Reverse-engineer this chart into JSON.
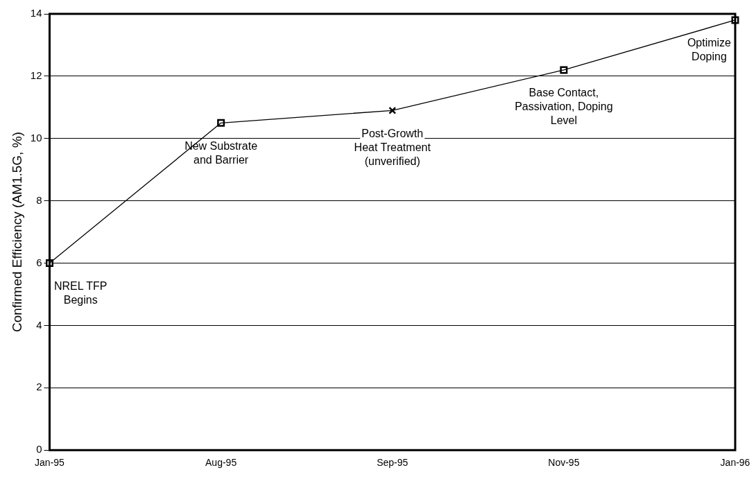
{
  "chart_data": {
    "type": "line",
    "ylabel": "Confirmed Efficiency (AM1.5G, %)",
    "categories": [
      "Jan-95",
      "Aug-95",
      "Sep-95",
      "Nov-95",
      "Jan-96"
    ],
    "series": [
      {
        "type": "line",
        "color": "#000000",
        "marker": "none",
        "values": [
          6,
          10.5,
          10.9,
          12.2,
          13.8
        ]
      },
      {
        "type": "scatter",
        "color": "#000000",
        "marker": "square",
        "values": [
          6,
          10.5,
          null,
          12.2,
          13.8
        ]
      },
      {
        "type": "scatter",
        "color": "#000000",
        "marker": "cross",
        "values": [
          null,
          null,
          10.9,
          null,
          null
        ]
      }
    ],
    "ylim": [
      0,
      14
    ],
    "yticks": [
      0,
      2,
      4,
      6,
      8,
      10,
      12,
      14
    ],
    "grid": "y",
    "legend": false,
    "annotations": [
      {
        "text": "NREL TFP\nBegins",
        "x": "Jan-95",
        "y": 6
      },
      {
        "text": "New Substrate\nand Barrier",
        "x": "Aug-95",
        "y": 10.5
      },
      {
        "text": "Post-Growth\nHeat Treatment\n(unverified)",
        "x": "Sep-95",
        "y": 10.9
      },
      {
        "text": "Base Contact,\nPassivation, Doping\nLevel",
        "x": "Nov-95",
        "y": 12.2
      },
      {
        "text": "Optimize\nDoping",
        "x": "Jan-96",
        "y": 13.8
      }
    ]
  }
}
